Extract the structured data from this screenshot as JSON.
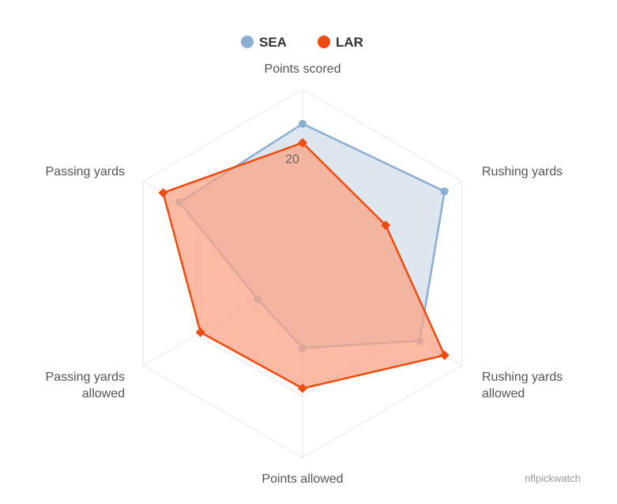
{
  "chart_data": {
    "type": "radar",
    "axes": [
      "Points scored",
      "Rushing yards",
      "Rushing yards allowed",
      "Points allowed",
      "Passing yards allowed",
      "Passing yards"
    ],
    "axis_label_lines": [
      [
        "Points scored"
      ],
      [
        "Rushing yards"
      ],
      [
        "Rushing yards",
        "allowed"
      ],
      [
        "Points allowed"
      ],
      [
        "Passing yards",
        "allowed"
      ],
      [
        "Passing yards"
      ]
    ],
    "rlim": [
      0,
      32
    ],
    "ticks": [
      20
    ],
    "tick_labels": [
      "20"
    ],
    "series": [
      {
        "name": "SEA",
        "color": "#8baed3",
        "fill": "#dce6ef",
        "marker": "circle",
        "values": [
          26,
          28.5,
          23.5,
          13,
          9,
          24.7
        ]
      },
      {
        "name": "LAR",
        "color": "#ef4b0e",
        "fill": "#f9a385",
        "marker": "diamond",
        "values": [
          22.7,
          16.7,
          28.5,
          20,
          20.5,
          28
        ]
      }
    ],
    "legend_position": "top-center",
    "credit": "nflpickwatch"
  }
}
